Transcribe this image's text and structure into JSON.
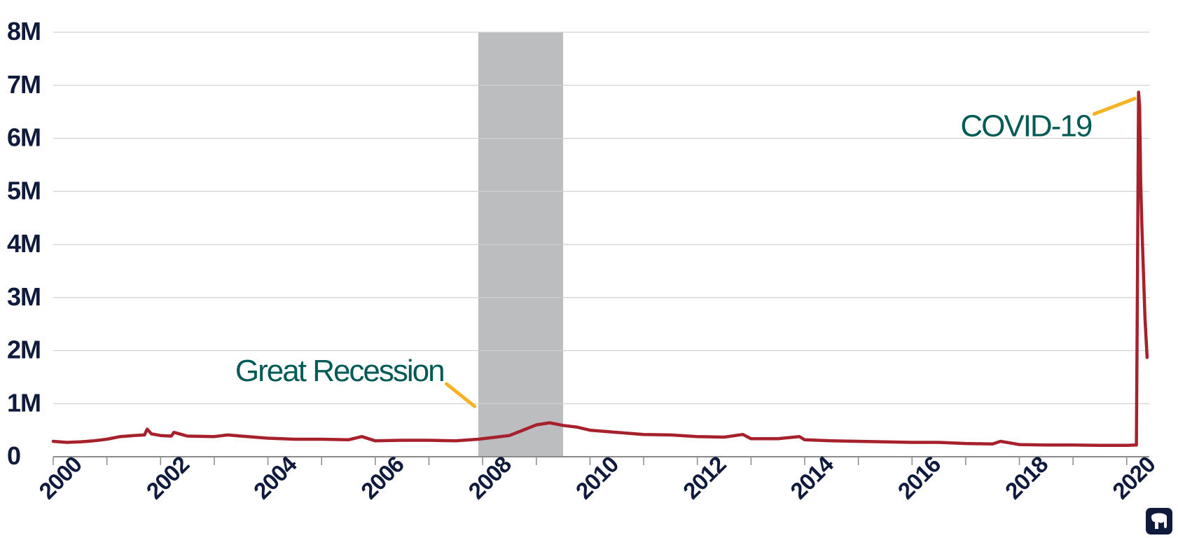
{
  "chart_data": {
    "type": "line",
    "title": "",
    "xlabel": "",
    "ylabel": "",
    "xlim": [
      2000,
      2020.42
    ],
    "ylim": [
      0,
      8000000
    ],
    "grid": true,
    "y_ticks": [
      {
        "value": 0,
        "label": "0"
      },
      {
        "value": 1000000,
        "label": "1M"
      },
      {
        "value": 2000000,
        "label": "2M"
      },
      {
        "value": 3000000,
        "label": "3M"
      },
      {
        "value": 4000000,
        "label": "4M"
      },
      {
        "value": 5000000,
        "label": "5M"
      },
      {
        "value": 6000000,
        "label": "6M"
      },
      {
        "value": 7000000,
        "label": "7M"
      },
      {
        "value": 8000000,
        "label": "8M"
      }
    ],
    "x_ticks": [
      {
        "value": 2000,
        "label": "2000"
      },
      {
        "value": 2002,
        "label": "2002"
      },
      {
        "value": 2004,
        "label": "2004"
      },
      {
        "value": 2006,
        "label": "2006"
      },
      {
        "value": 2008,
        "label": "2008"
      },
      {
        "value": 2010,
        "label": "2010"
      },
      {
        "value": 2012,
        "label": "2012"
      },
      {
        "value": 2014,
        "label": "2014"
      },
      {
        "value": 2016,
        "label": "2016"
      },
      {
        "value": 2018,
        "label": "2018"
      },
      {
        "value": 2020,
        "label": "2020"
      }
    ],
    "shaded_periods": [
      {
        "start": 2007.92,
        "end": 2009.5
      }
    ],
    "series": [
      {
        "color": "#a6212b",
        "x": [
          2000.0,
          2000.25,
          2000.5,
          2000.75,
          2001.0,
          2001.25,
          2001.5,
          2001.7,
          2001.75,
          2001.83,
          2002.0,
          2002.2,
          2002.25,
          2002.5,
          2003.0,
          2003.25,
          2003.5,
          2004.0,
          2004.5,
          2005.0,
          2005.5,
          2005.75,
          2006.0,
          2006.5,
          2007.0,
          2007.5,
          2007.92,
          2008.25,
          2008.5,
          2008.75,
          2009.0,
          2009.25,
          2009.5,
          2009.75,
          2010.0,
          2010.5,
          2011.0,
          2011.5,
          2012.0,
          2012.5,
          2012.85,
          2013.0,
          2013.5,
          2013.9,
          2014.0,
          2014.5,
          2015.0,
          2015.5,
          2016.0,
          2016.5,
          2017.0,
          2017.5,
          2017.65,
          2018.0,
          2018.5,
          2019.0,
          2019.5,
          2020.0,
          2020.18,
          2020.2,
          2020.22,
          2020.24,
          2020.26,
          2020.28,
          2020.3,
          2020.34,
          2020.38
        ],
        "y": [
          290000,
          270000,
          280000,
          300000,
          330000,
          380000,
          400000,
          410000,
          520000,
          430000,
          400000,
          390000,
          460000,
          390000,
          380000,
          410000,
          390000,
          350000,
          330000,
          330000,
          320000,
          380000,
          300000,
          310000,
          310000,
          300000,
          330000,
          370000,
          400000,
          500000,
          600000,
          640000,
          590000,
          560000,
          500000,
          460000,
          420000,
          410000,
          380000,
          370000,
          420000,
          340000,
          340000,
          380000,
          320000,
          300000,
          290000,
          280000,
          270000,
          270000,
          250000,
          240000,
          290000,
          230000,
          220000,
          220000,
          215000,
          215000,
          220000,
          3300000,
          6870000,
          6600000,
          5200000,
          4400000,
          3800000,
          2600000,
          1870000
        ]
      }
    ],
    "annotations": [
      {
        "text": "Great Recession",
        "pointer_x": 2007.85,
        "pointer_y": 950000
      },
      {
        "text": "COVID-19",
        "pointer_x": 2020.15,
        "pointer_y": 6750000
      }
    ],
    "colors": {
      "line": "#a6212b",
      "shade": "#bcbdbf",
      "grid": "#d0d0d0",
      "tick_text": "#0f1a3c",
      "annotation_text": "#005a55",
      "pointer": "#f5b323"
    },
    "logo": "elephant-logo"
  }
}
